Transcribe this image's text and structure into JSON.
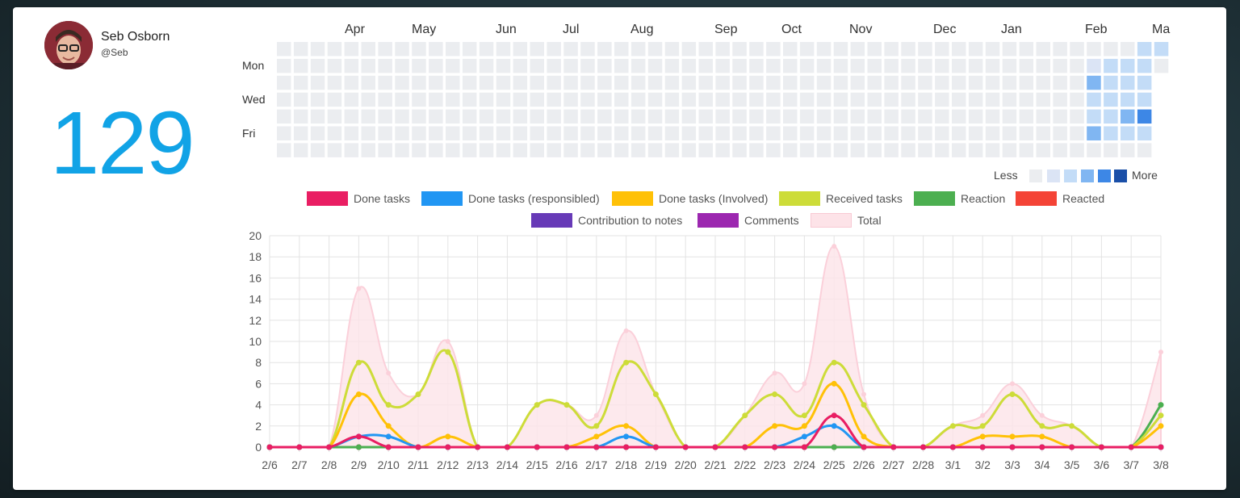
{
  "user": {
    "name": "Seb Osborn",
    "handle": "@Seb"
  },
  "total_count": "129",
  "heatmap": {
    "months": [
      "Apr",
      "May",
      "Jun",
      "Jul",
      "Aug",
      "Sep",
      "Oct",
      "Nov",
      "Dec",
      "Jan",
      "Feb",
      "Ma"
    ],
    "days": [
      "Mon",
      "Wed",
      "Fri"
    ],
    "legend_less": "Less",
    "legend_more": "More",
    "colors": [
      "#ebedf0",
      "#dbe4f5",
      "#c3dcf7",
      "#80b6f2",
      "#3d87e6",
      "#1a4fa8"
    ],
    "active_cells": [
      {
        "week": 48,
        "day": 1,
        "level": 1
      },
      {
        "week": 49,
        "day": 1,
        "level": 2
      },
      {
        "week": 50,
        "day": 1,
        "level": 2
      },
      {
        "week": 48,
        "day": 2,
        "level": 3
      },
      {
        "week": 49,
        "day": 2,
        "level": 2
      },
      {
        "week": 50,
        "day": 2,
        "level": 2
      },
      {
        "week": 48,
        "day": 3,
        "level": 2
      },
      {
        "week": 49,
        "day": 3,
        "level": 2
      },
      {
        "week": 50,
        "day": 3,
        "level": 2
      },
      {
        "week": 48,
        "day": 4,
        "level": 2
      },
      {
        "week": 49,
        "day": 4,
        "level": 2
      },
      {
        "week": 50,
        "day": 4,
        "level": 3
      },
      {
        "week": 51,
        "day": 4,
        "level": 4
      },
      {
        "week": 48,
        "day": 5,
        "level": 3
      },
      {
        "week": 49,
        "day": 5,
        "level": 2
      },
      {
        "week": 50,
        "day": 5,
        "level": 2
      },
      {
        "week": 51,
        "day": 5,
        "level": 2
      },
      {
        "week": 51,
        "day": 0,
        "level": 2
      },
      {
        "week": 52,
        "day": 0,
        "level": 2
      },
      {
        "week": 51,
        "day": 1,
        "level": 2
      },
      {
        "week": 51,
        "day": 2,
        "level": 2
      },
      {
        "week": 51,
        "day": 3,
        "level": 2
      }
    ]
  },
  "chart_data": {
    "type": "line",
    "categories": [
      "2/6",
      "2/7",
      "2/8",
      "2/9",
      "2/10",
      "2/11",
      "2/12",
      "2/13",
      "2/14",
      "2/15",
      "2/16",
      "2/17",
      "2/18",
      "2/19",
      "2/20",
      "2/21",
      "2/22",
      "2/23",
      "2/24",
      "2/25",
      "2/26",
      "2/27",
      "2/28",
      "3/1",
      "3/2",
      "3/3",
      "3/4",
      "3/5",
      "3/6",
      "3/7",
      "3/8"
    ],
    "ylim": [
      0,
      20
    ],
    "yticks": [
      0,
      2,
      4,
      6,
      8,
      10,
      12,
      14,
      16,
      18,
      20
    ],
    "grid": true,
    "legend_position": "top",
    "series": [
      {
        "name": "Done tasks",
        "color": "#e91e63",
        "values": [
          0,
          0,
          0,
          1,
          0,
          0,
          0,
          0,
          0,
          0,
          0,
          0,
          0,
          0,
          0,
          0,
          0,
          0,
          0,
          3,
          0,
          0,
          0,
          0,
          0,
          0,
          0,
          0,
          0,
          0,
          0
        ]
      },
      {
        "name": "Done tasks (responsibled)",
        "color": "#2196f3",
        "values": [
          0,
          0,
          0,
          1,
          1,
          0,
          0,
          0,
          0,
          0,
          0,
          0,
          1,
          0,
          0,
          0,
          0,
          0,
          1,
          2,
          0,
          0,
          0,
          0,
          0,
          0,
          0,
          0,
          0,
          0,
          0
        ]
      },
      {
        "name": "Done tasks (Involved)",
        "color": "#ffc107",
        "values": [
          0,
          0,
          0,
          5,
          2,
          0,
          1,
          0,
          0,
          0,
          0,
          1,
          2,
          0,
          0,
          0,
          0,
          2,
          2,
          6,
          1,
          0,
          0,
          0,
          1,
          1,
          1,
          0,
          0,
          0,
          2
        ]
      },
      {
        "name": "Received tasks",
        "color": "#cddc39",
        "values": [
          0,
          0,
          0,
          8,
          4,
          5,
          9,
          0,
          0,
          4,
          4,
          2,
          8,
          5,
          0,
          0,
          3,
          5,
          3,
          8,
          4,
          0,
          0,
          2,
          2,
          5,
          2,
          2,
          0,
          0,
          3
        ]
      },
      {
        "name": "Reaction",
        "color": "#4caf50",
        "values": [
          0,
          0,
          0,
          0,
          0,
          0,
          0,
          0,
          0,
          0,
          0,
          0,
          0,
          0,
          0,
          0,
          0,
          0,
          0,
          0,
          0,
          0,
          0,
          0,
          0,
          0,
          0,
          0,
          0,
          0,
          4
        ]
      },
      {
        "name": "Reacted",
        "color": "#f44336",
        "values": [
          0,
          0,
          0,
          0,
          0,
          0,
          0,
          0,
          0,
          0,
          0,
          0,
          0,
          0,
          0,
          0,
          0,
          0,
          0,
          0,
          0,
          0,
          0,
          0,
          0,
          0,
          0,
          0,
          0,
          0,
          0
        ]
      },
      {
        "name": "Contribution to notes",
        "color": "#673ab7",
        "values": [
          0,
          0,
          0,
          0,
          0,
          0,
          0,
          0,
          0,
          0,
          0,
          0,
          0,
          0,
          0,
          0,
          0,
          0,
          0,
          0,
          0,
          0,
          0,
          0,
          0,
          0,
          0,
          0,
          0,
          0,
          0
        ]
      },
      {
        "name": "Comments",
        "color": "#9c27b0",
        "values": [
          0,
          0,
          0,
          0,
          0,
          0,
          0,
          0,
          0,
          0,
          0,
          0,
          0,
          0,
          0,
          0,
          0,
          0,
          0,
          0,
          0,
          0,
          0,
          0,
          0,
          0,
          0,
          0,
          0,
          0,
          0
        ]
      },
      {
        "name": "Total",
        "color": "#fde3e8",
        "values": [
          0,
          0,
          0,
          15,
          7,
          5,
          10,
          0,
          0,
          4,
          4,
          3,
          11,
          5,
          0,
          0,
          3,
          7,
          6,
          19,
          5,
          0,
          0,
          2,
          3,
          6,
          3,
          2,
          0,
          0,
          9
        ]
      }
    ]
  }
}
